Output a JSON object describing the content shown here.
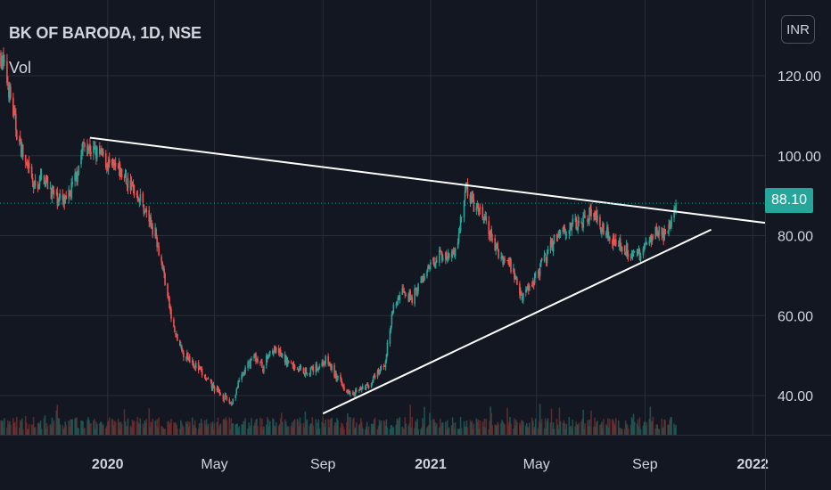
{
  "header": {
    "title": "BK OF BARODA, 1D, NSE",
    "volume_label": "Vol"
  },
  "currency_button": "INR",
  "last_price_label": "88.10",
  "colors": {
    "background": "#131722",
    "up": "#26a69a",
    "down": "#ef5350",
    "trendline": "#ffffff",
    "grid": "#2a2e39",
    "text": "#d1d4dc"
  },
  "chart_data": {
    "type": "candlestick",
    "title": "BK OF BARODA, 1D, NSE",
    "ylabel": "",
    "xlabel": "",
    "ylim": [
      31,
      131
    ],
    "y_ticks": [
      {
        "value": 40,
        "label": "40.00"
      },
      {
        "value": 60,
        "label": "60.00"
      },
      {
        "value": 80,
        "label": "80.00"
      },
      {
        "value": 100,
        "label": "100.00"
      },
      {
        "value": 120,
        "label": "120.00"
      }
    ],
    "x_range": [
      "2019-09-01",
      "2022-01-15"
    ],
    "x_ticks": [
      {
        "date": "2020-01-01",
        "label": "2020",
        "bold": true
      },
      {
        "date": "2020-05-01",
        "label": "May",
        "bold": false
      },
      {
        "date": "2020-09-01",
        "label": "Sep",
        "bold": false
      },
      {
        "date": "2021-01-01",
        "label": "2021",
        "bold": true
      },
      {
        "date": "2021-05-01",
        "label": "May",
        "bold": false
      },
      {
        "date": "2021-09-01",
        "label": "Sep",
        "bold": false
      },
      {
        "date": "2022-01-01",
        "label": "2022",
        "bold": true
      }
    ],
    "last_price": 88.1,
    "price_path": [
      [
        "2019-09-01",
        126
      ],
      [
        "2019-09-10",
        118
      ],
      [
        "2019-09-20",
        106
      ],
      [
        "2019-10-01",
        97
      ],
      [
        "2019-10-10",
        92
      ],
      [
        "2019-10-20",
        95
      ],
      [
        "2019-11-01",
        90
      ],
      [
        "2019-11-15",
        88
      ],
      [
        "2019-11-25",
        94
      ],
      [
        "2019-12-05",
        103
      ],
      [
        "2019-12-15",
        101
      ],
      [
        "2019-12-25",
        100
      ],
      [
        "2020-01-05",
        97
      ],
      [
        "2020-01-15",
        96
      ],
      [
        "2020-01-25",
        93
      ],
      [
        "2020-02-05",
        90
      ],
      [
        "2020-02-15",
        85
      ],
      [
        "2020-02-25",
        80
      ],
      [
        "2020-03-05",
        70
      ],
      [
        "2020-03-15",
        57
      ],
      [
        "2020-03-25",
        51
      ],
      [
        "2020-04-05",
        49
      ],
      [
        "2020-04-15",
        46
      ],
      [
        "2020-04-25",
        43
      ],
      [
        "2020-05-10",
        40
      ],
      [
        "2020-05-20",
        38
      ],
      [
        "2020-06-01",
        45
      ],
      [
        "2020-06-15",
        50
      ],
      [
        "2020-06-25",
        47
      ],
      [
        "2020-07-05",
        52
      ],
      [
        "2020-07-20",
        49
      ],
      [
        "2020-08-01",
        47
      ],
      [
        "2020-08-15",
        46
      ],
      [
        "2020-08-25",
        47
      ],
      [
        "2020-09-05",
        49
      ],
      [
        "2020-09-15",
        45
      ],
      [
        "2020-09-25",
        42
      ],
      [
        "2020-10-05",
        41
      ],
      [
        "2020-10-20",
        42
      ],
      [
        "2020-11-01",
        45
      ],
      [
        "2020-11-10",
        48
      ],
      [
        "2020-11-20",
        62
      ],
      [
        "2020-12-01",
        67
      ],
      [
        "2020-12-10",
        64
      ],
      [
        "2020-12-20",
        68
      ],
      [
        "2021-01-01",
        72
      ],
      [
        "2021-01-10",
        76
      ],
      [
        "2021-01-20",
        74
      ],
      [
        "2021-02-01",
        78
      ],
      [
        "2021-02-05",
        86
      ],
      [
        "2021-02-10",
        92
      ],
      [
        "2021-02-20",
        87
      ],
      [
        "2021-03-01",
        85
      ],
      [
        "2021-03-10",
        80
      ],
      [
        "2021-03-20",
        75
      ],
      [
        "2021-04-01",
        73
      ],
      [
        "2021-04-15",
        65
      ],
      [
        "2021-04-25",
        68
      ],
      [
        "2021-05-05",
        72
      ],
      [
        "2021-05-15",
        76
      ],
      [
        "2021-05-25",
        81
      ],
      [
        "2021-06-05",
        82
      ],
      [
        "2021-06-20",
        83
      ],
      [
        "2021-07-01",
        86
      ],
      [
        "2021-07-15",
        82
      ],
      [
        "2021-08-01",
        78
      ],
      [
        "2021-08-15",
        76
      ],
      [
        "2021-08-25",
        75
      ],
      [
        "2021-09-05",
        79
      ],
      [
        "2021-09-15",
        82
      ],
      [
        "2021-09-25",
        79
      ],
      [
        "2021-10-01",
        84
      ],
      [
        "2021-10-06",
        88.1
      ]
    ],
    "trendlines": [
      {
        "name": "descending-resistance",
        "start": [
          "2019-12-12",
          104.5
        ],
        "end": [
          "2022-01-15",
          83.2
        ]
      },
      {
        "name": "ascending-support",
        "start": [
          "2020-09-01",
          35.5
        ],
        "end": [
          "2021-11-15",
          81.5
        ]
      }
    ],
    "last_price_line": 88.1
  }
}
